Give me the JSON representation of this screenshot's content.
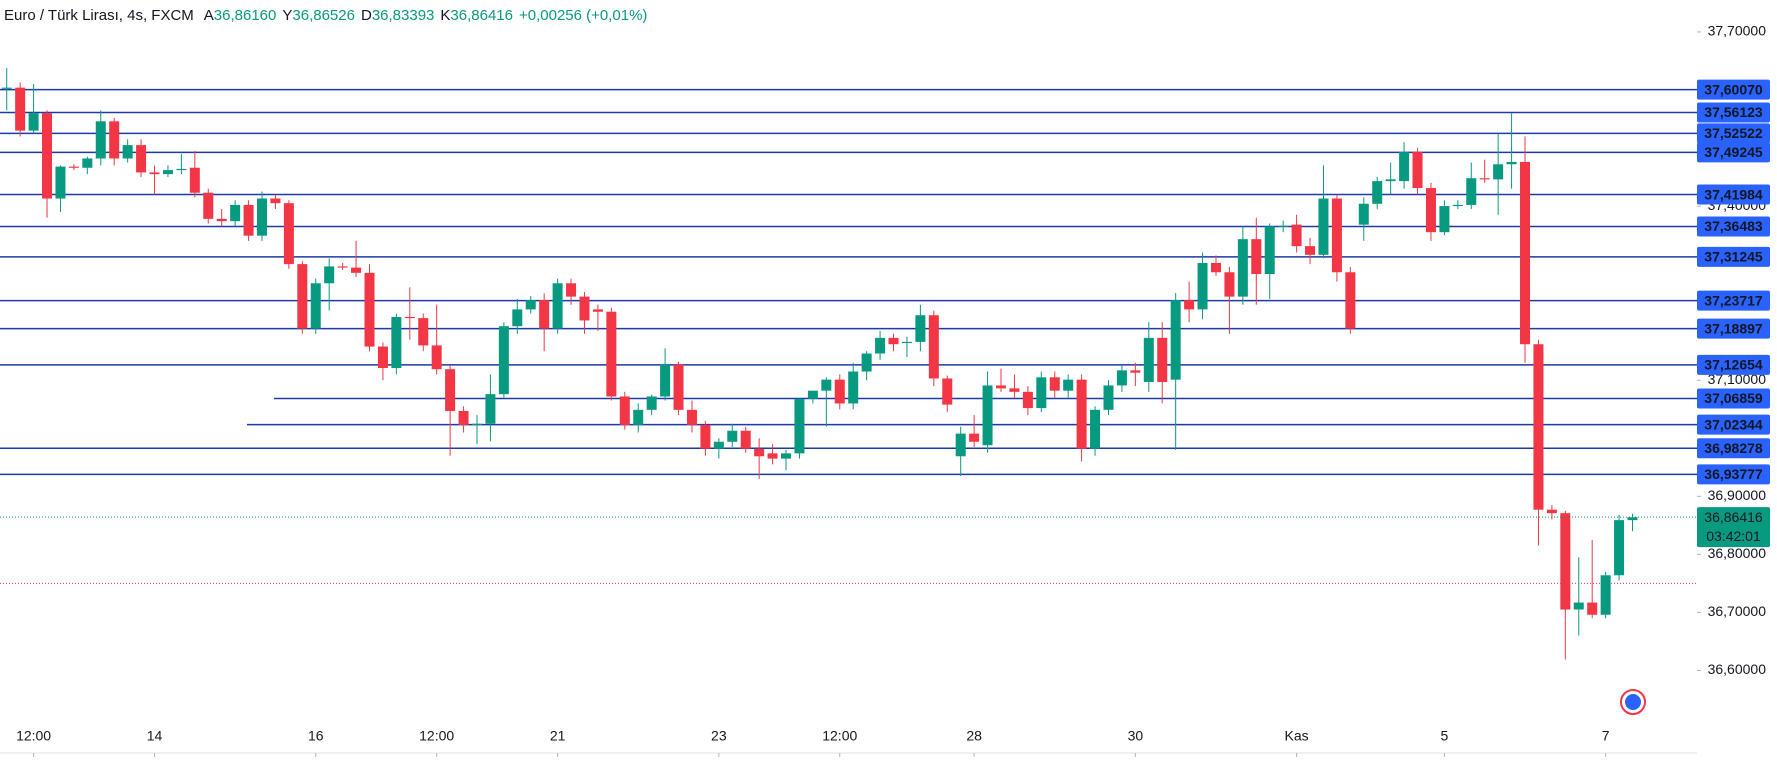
{
  "chart_data": {
    "type": "candlestick",
    "title": "Euro / Türk Lirası, 4s, FXCM",
    "ohlc_header": [
      {
        "label": "A",
        "value": "36,86160"
      },
      {
        "label": "Y",
        "value": "36,86526"
      },
      {
        "label": "D",
        "value": "36,83393"
      },
      {
        "label": "K",
        "value": "36,86416"
      }
    ],
    "change": "+0,00256 (+0,01%)",
    "up_color": "#089981",
    "down_color": "#f23645",
    "level_color": "#1c3aa9",
    "level_label_color": "#2962ff",
    "ylim": [
      36.463,
      37.755
    ],
    "xlim": [
      -0.5,
      125.8
    ],
    "yticks": [
      {
        "value": 37.7,
        "label": "37,70000"
      },
      {
        "value": 37.4,
        "label": "37,40000"
      },
      {
        "value": 37.1,
        "label": "37,10000"
      },
      {
        "value": 36.9,
        "label": "36,90000"
      },
      {
        "value": 36.8,
        "label": "36,80000"
      },
      {
        "value": 36.7,
        "label": "36,70000"
      },
      {
        "value": 36.6,
        "label": "36,60000"
      }
    ],
    "xticks": [
      {
        "value": 2,
        "label": "12:00"
      },
      {
        "value": 11,
        "label": "14"
      },
      {
        "value": 23,
        "label": "16"
      },
      {
        "value": 32,
        "label": "12:00"
      },
      {
        "value": 41,
        "label": "21"
      },
      {
        "value": 53,
        "label": "23"
      },
      {
        "value": 62,
        "label": "12:00"
      },
      {
        "value": 72,
        "label": "28"
      },
      {
        "value": 84,
        "label": "30"
      },
      {
        "value": 96,
        "label": "Kas"
      },
      {
        "value": 107,
        "label": "5"
      },
      {
        "value": 119,
        "label": "7"
      }
    ],
    "levels": [
      {
        "value": 37.6007,
        "label": "37,60070"
      },
      {
        "value": 37.56123,
        "label": "37,56123"
      },
      {
        "value": 37.52522,
        "label": "37,52522"
      },
      {
        "value": 37.49245,
        "label": "37,49245"
      },
      {
        "value": 37.41984,
        "label": "37,41984"
      },
      {
        "value": 37.36483,
        "label": "37,36483"
      },
      {
        "value": 37.31245,
        "label": "37,31245"
      },
      {
        "value": 37.23717,
        "label": "37,23717"
      },
      {
        "value": 37.18897,
        "label": "37,18897"
      },
      {
        "value": 37.12654,
        "label": "37,12654"
      },
      {
        "value": 37.06859,
        "label": "37,06859"
      },
      {
        "value": 37.02344,
        "label": "37,02344"
      },
      {
        "value": 36.98278,
        "label": "36,98278"
      },
      {
        "value": 36.93777,
        "label": "36,93777"
      }
    ],
    "current_price": {
      "value": 36.86416,
      "label": "36,86416",
      "countdown": "03:42:01"
    },
    "reference_line": 36.75,
    "ohlc": [
      [
        37.602,
        37.638,
        37.565,
        37.604
      ],
      [
        37.604,
        37.613,
        37.52,
        37.53
      ],
      [
        37.53,
        37.61,
        37.525,
        37.56
      ],
      [
        37.56,
        37.565,
        37.38,
        37.413
      ],
      [
        37.413,
        37.47,
        37.39,
        37.468
      ],
      [
        37.468,
        37.472,
        37.462,
        37.466
      ],
      [
        37.466,
        37.485,
        37.455,
        37.482
      ],
      [
        37.482,
        37.565,
        37.47,
        37.546
      ],
      [
        37.546,
        37.552,
        37.47,
        37.482
      ],
      [
        37.482,
        37.515,
        37.475,
        37.505
      ],
      [
        37.505,
        37.515,
        37.45,
        37.458
      ],
      [
        37.458,
        37.47,
        37.42,
        37.455
      ],
      [
        37.455,
        37.47,
        37.45,
        37.462
      ],
      [
        37.462,
        37.49,
        37.455,
        37.464
      ],
      [
        37.466,
        37.495,
        37.415,
        37.423
      ],
      [
        37.423,
        37.43,
        37.37,
        37.378
      ],
      [
        37.378,
        37.395,
        37.365,
        37.374
      ],
      [
        37.374,
        37.41,
        37.365,
        37.402
      ],
      [
        37.402,
        37.41,
        37.34,
        37.349
      ],
      [
        37.349,
        37.425,
        37.34,
        37.413
      ],
      [
        37.413,
        37.42,
        37.395,
        37.405
      ],
      [
        37.405,
        37.41,
        37.292,
        37.3
      ],
      [
        37.3,
        37.305,
        37.18,
        37.189
      ],
      [
        37.189,
        37.275,
        37.18,
        37.267
      ],
      [
        37.267,
        37.31,
        37.22,
        37.296
      ],
      [
        37.296,
        37.302,
        37.29,
        37.294
      ],
      [
        37.294,
        37.34,
        37.278,
        37.285
      ],
      [
        37.285,
        37.3,
        37.15,
        37.158
      ],
      [
        37.158,
        37.165,
        37.1,
        37.121
      ],
      [
        37.121,
        37.215,
        37.11,
        37.209
      ],
      [
        37.209,
        37.26,
        37.17,
        37.207
      ],
      [
        37.207,
        37.215,
        37.15,
        37.16
      ],
      [
        37.16,
        37.23,
        37.11,
        37.119
      ],
      [
        37.119,
        37.125,
        36.97,
        37.047
      ],
      [
        37.047,
        37.055,
        37.01,
        37.023
      ],
      [
        37.023,
        37.04,
        36.99,
        37.025
      ],
      [
        37.025,
        37.11,
        36.995,
        37.076
      ],
      [
        37.076,
        37.2,
        37.07,
        37.193
      ],
      [
        37.193,
        37.24,
        37.18,
        37.222
      ],
      [
        37.222,
        37.245,
        37.215,
        37.238
      ],
      [
        37.238,
        37.25,
        37.15,
        37.189
      ],
      [
        37.189,
        37.275,
        37.18,
        37.267
      ],
      [
        37.267,
        37.275,
        37.23,
        37.244
      ],
      [
        37.244,
        37.252,
        37.18,
        37.203
      ],
      [
        37.222,
        37.23,
        37.185,
        37.218
      ],
      [
        37.218,
        37.225,
        37.065,
        37.072
      ],
      [
        37.072,
        37.08,
        37.015,
        37.023
      ],
      [
        37.023,
        37.06,
        37.01,
        37.049
      ],
      [
        37.049,
        37.075,
        37.04,
        37.072
      ],
      [
        37.072,
        37.155,
        37.065,
        37.127
      ],
      [
        37.127,
        37.132,
        37.04,
        37.049
      ],
      [
        37.049,
        37.065,
        37.01,
        37.023
      ],
      [
        37.023,
        37.03,
        36.97,
        36.982
      ],
      [
        36.982,
        37.0,
        36.965,
        36.994
      ],
      [
        36.994,
        37.025,
        36.985,
        37.013
      ],
      [
        37.013,
        37.02,
        36.975,
        36.982
      ],
      [
        36.982,
        37.0,
        36.93,
        36.969
      ],
      [
        36.974,
        36.99,
        36.955,
        36.965
      ],
      [
        36.965,
        36.98,
        36.945,
        36.974
      ],
      [
        36.974,
        37.068,
        36.965,
        37.068
      ],
      [
        37.068,
        37.082,
        37.06,
        37.082
      ],
      [
        37.082,
        37.105,
        37.02,
        37.101
      ],
      [
        37.101,
        37.11,
        37.05,
        37.06
      ],
      [
        37.06,
        37.13,
        37.05,
        37.115
      ],
      [
        37.115,
        37.15,
        37.1,
        37.146
      ],
      [
        37.146,
        37.185,
        37.135,
        37.173
      ],
      [
        37.173,
        37.18,
        37.15,
        37.162
      ],
      [
        37.164,
        37.175,
        37.14,
        37.166
      ],
      [
        37.166,
        37.23,
        37.15,
        37.212
      ],
      [
        37.212,
        37.22,
        37.09,
        37.103
      ],
      [
        37.103,
        37.108,
        37.045,
        37.058
      ],
      [
        36.969,
        37.02,
        36.935,
        37.008
      ],
      [
        37.008,
        37.04,
        36.985,
        36.994
      ],
      [
        36.988,
        37.115,
        36.975,
        37.091
      ],
      [
        37.091,
        37.12,
        37.08,
        37.086
      ],
      [
        37.086,
        37.11,
        37.07,
        37.08
      ],
      [
        37.08,
        37.09,
        37.04,
        37.052
      ],
      [
        37.052,
        37.115,
        37.045,
        37.105
      ],
      [
        37.105,
        37.115,
        37.07,
        37.082
      ],
      [
        37.082,
        37.11,
        37.07,
        37.101
      ],
      [
        37.101,
        37.11,
        36.96,
        36.982
      ],
      [
        36.982,
        37.055,
        36.97,
        37.049
      ],
      [
        37.049,
        37.1,
        37.04,
        37.091
      ],
      [
        37.091,
        37.125,
        37.08,
        37.117
      ],
      [
        37.117,
        37.13,
        37.09,
        37.113
      ],
      [
        37.097,
        37.2,
        37.08,
        37.173
      ],
      [
        37.173,
        37.2,
        37.06,
        37.097
      ],
      [
        37.101,
        37.25,
        36.98,
        37.238
      ],
      [
        37.238,
        37.27,
        37.2,
        37.222
      ],
      [
        37.222,
        37.32,
        37.205,
        37.302
      ],
      [
        37.302,
        37.315,
        37.28,
        37.286
      ],
      [
        37.286,
        37.295,
        37.18,
        37.244
      ],
      [
        37.244,
        37.365,
        37.23,
        37.343
      ],
      [
        37.343,
        37.38,
        37.23,
        37.283
      ],
      [
        37.283,
        37.37,
        37.24,
        37.365
      ],
      [
        37.365,
        37.375,
        37.355,
        37.366
      ],
      [
        37.368,
        37.385,
        37.32,
        37.331
      ],
      [
        37.331,
        37.345,
        37.3,
        37.316
      ],
      [
        37.316,
        37.47,
        37.31,
        37.413
      ],
      [
        37.413,
        37.42,
        37.27,
        37.286
      ],
      [
        37.286,
        37.295,
        37.18,
        37.189
      ],
      [
        37.368,
        37.415,
        37.34,
        37.404
      ],
      [
        37.404,
        37.45,
        37.395,
        37.443
      ],
      [
        37.443,
        37.475,
        37.42,
        37.446
      ],
      [
        37.443,
        37.51,
        37.43,
        37.493
      ],
      [
        37.493,
        37.5,
        37.42,
        37.431
      ],
      [
        37.431,
        37.44,
        37.34,
        37.355
      ],
      [
        37.355,
        37.41,
        37.35,
        37.4
      ],
      [
        37.4,
        37.41,
        37.395,
        37.402
      ],
      [
        37.402,
        37.475,
        37.395,
        37.448
      ],
      [
        37.448,
        37.48,
        37.44,
        37.446
      ],
      [
        37.446,
        37.525,
        37.385,
        37.472
      ],
      [
        37.472,
        37.56,
        37.43,
        37.476
      ],
      [
        37.476,
        37.52,
        37.13,
        37.162
      ],
      [
        37.162,
        37.17,
        36.815,
        36.877
      ],
      [
        36.877,
        36.885,
        36.86,
        36.871
      ],
      [
        36.871,
        36.875,
        36.619,
        36.705
      ],
      [
        36.705,
        36.795,
        36.66,
        36.717
      ],
      [
        36.717,
        36.825,
        36.69,
        36.696
      ],
      [
        36.696,
        36.77,
        36.69,
        36.764
      ],
      [
        36.764,
        36.868,
        36.755,
        36.859
      ],
      [
        36.859,
        36.87,
        36.84,
        36.864
      ]
    ]
  }
}
